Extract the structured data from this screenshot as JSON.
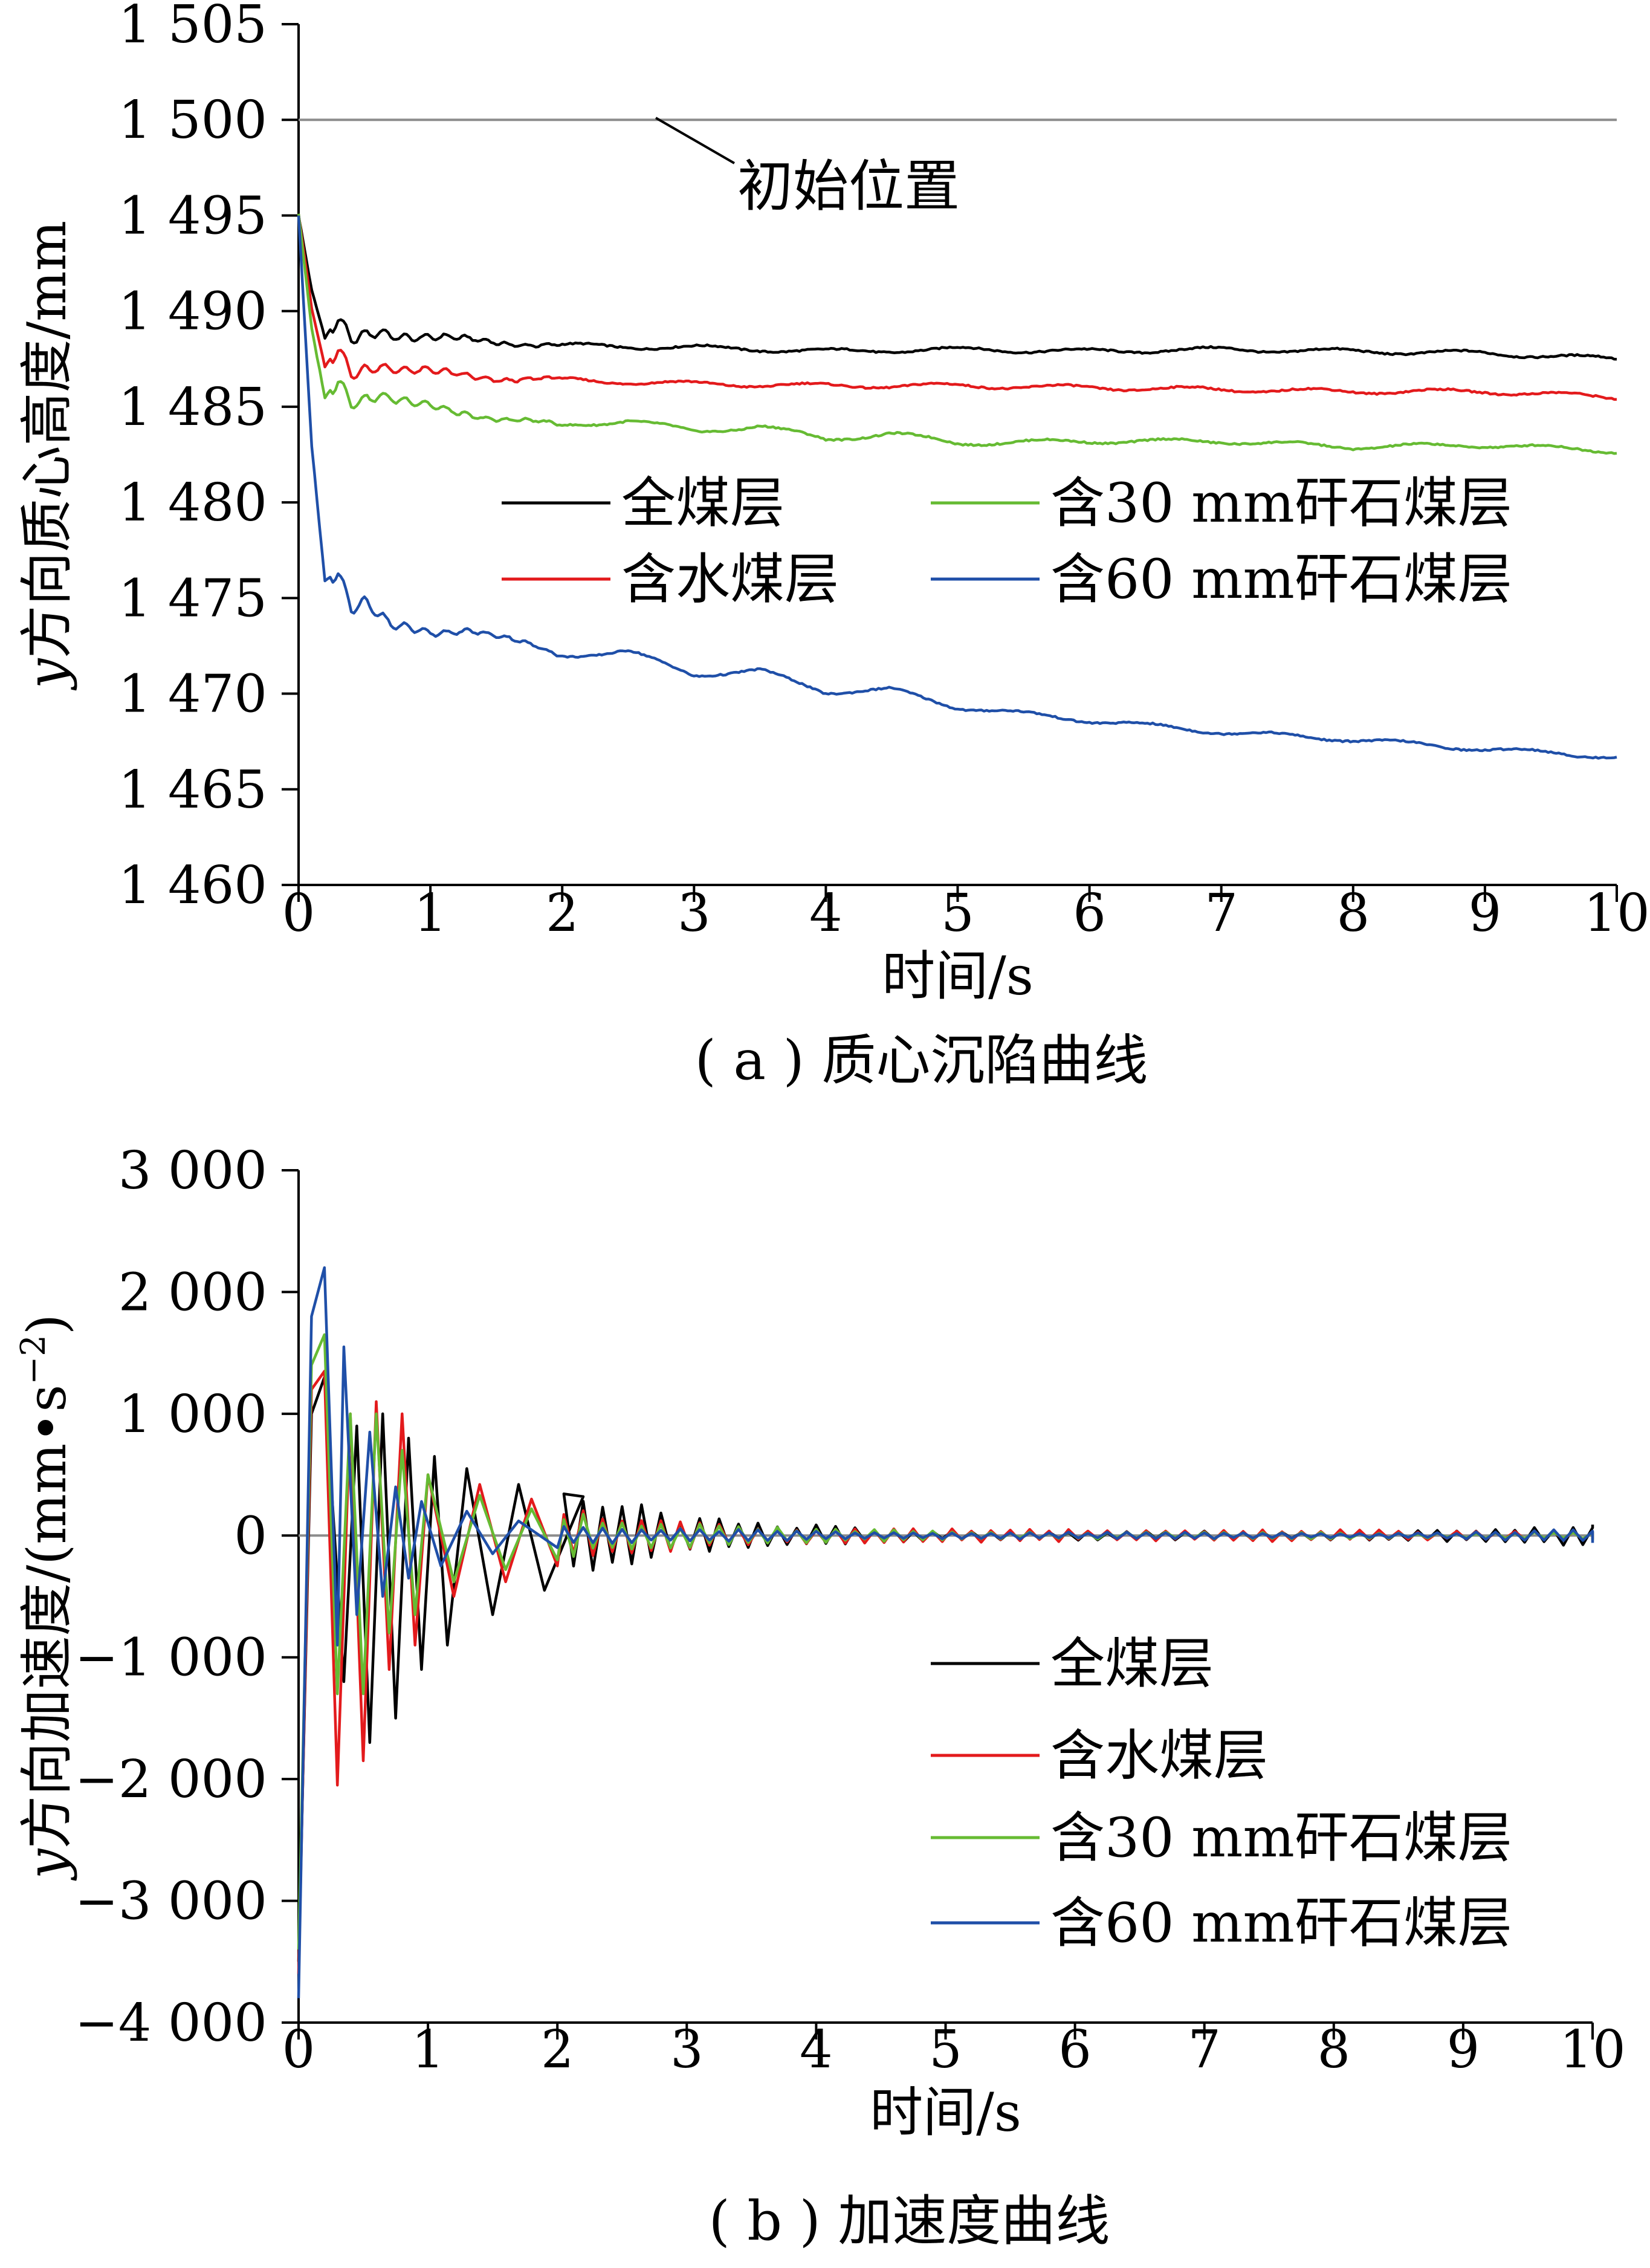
{
  "chart_data": [
    {
      "type": "line",
      "panel_caption": "( a ) 质心沉陷曲线",
      "xlabel": "时间/s",
      "ylabel_var": "y",
      "ylabel_rest": "方向质心高度/mm",
      "xlim": [
        0,
        10
      ],
      "ylim": [
        1460,
        1505
      ],
      "x_ticks": [
        0,
        1,
        2,
        3,
        4,
        5,
        6,
        7,
        8,
        9,
        10
      ],
      "x_tick_labels": [
        "0",
        "1",
        "2",
        "3",
        "4",
        "5",
        "6",
        "7",
        "8",
        "9",
        "10"
      ],
      "y_ticks": [
        1460,
        1465,
        1470,
        1475,
        1480,
        1485,
        1490,
        1495,
        1500,
        1505
      ],
      "y_tick_labels": [
        "1 460",
        "1 465",
        "1 470",
        "1 475",
        "1 480",
        "1 485",
        "1 490",
        "1 495",
        "1 500",
        "1 505"
      ],
      "legend_placement": "center-right",
      "reference_line": {
        "y": 1500,
        "label": "初始位置",
        "color": "#8c8c8c"
      },
      "series": [
        {
          "name": "全煤层",
          "color": "#000000",
          "x": [
            0,
            0.1,
            0.2,
            0.3,
            0.4,
            0.6,
            0.8,
            1,
            1.5,
            2,
            3,
            4,
            5,
            6,
            7,
            8,
            9,
            10
          ],
          "y": [
            1495,
            1491,
            1488.5,
            1489.5,
            1488.5,
            1489,
            1488.7,
            1488.6,
            1488.4,
            1488.2,
            1488.1,
            1487.9,
            1488,
            1487.9,
            1488,
            1487.9,
            1487.8,
            1487.5
          ]
        },
        {
          "name": "含水煤层",
          "color": "#e31a1c",
          "x": [
            0,
            0.1,
            0.2,
            0.3,
            0.4,
            0.6,
            0.8,
            1,
            1.5,
            2,
            3,
            4,
            5,
            6,
            7,
            8,
            9,
            10
          ],
          "y": [
            1495,
            1490,
            1487,
            1488,
            1486.8,
            1487.2,
            1486.9,
            1486.8,
            1486.5,
            1486.4,
            1486.2,
            1486.1,
            1486.1,
            1486,
            1485.9,
            1485.8,
            1485.8,
            1485.5
          ]
        },
        {
          "name": "含30 mm矸石煤层",
          "color": "#66bb33",
          "x": [
            0,
            0.1,
            0.2,
            0.3,
            0.4,
            0.6,
            0.8,
            1,
            1.5,
            2,
            2.5,
            3,
            3.5,
            4,
            4.5,
            5,
            6,
            7,
            8,
            9,
            10
          ],
          "y": [
            1495,
            1489,
            1485.5,
            1486.5,
            1485.3,
            1485.6,
            1485.2,
            1485,
            1484.4,
            1484,
            1484.3,
            1483.7,
            1484,
            1483.3,
            1483.6,
            1483.1,
            1483.2,
            1483.2,
            1482.9,
            1483,
            1482.7
          ]
        },
        {
          "name": "含60 mm矸石煤层",
          "color": "#1f4fa8",
          "x": [
            0,
            0.1,
            0.2,
            0.3,
            0.4,
            0.5,
            0.7,
            0.9,
            1,
            1.3,
            1.5,
            2,
            2.5,
            3,
            3.5,
            4,
            4.5,
            5,
            6,
            7,
            8,
            9,
            10
          ],
          "y": [
            1495,
            1483,
            1476,
            1476.5,
            1474.5,
            1474.8,
            1473.5,
            1473.3,
            1473.2,
            1473.4,
            1473,
            1472,
            1472.2,
            1471,
            1471.2,
            1470.1,
            1470.2,
            1469.3,
            1468.6,
            1468,
            1467.6,
            1467.1,
            1466.7
          ]
        }
      ]
    },
    {
      "type": "line",
      "panel_caption": "( b ) 加速度曲线",
      "xlabel": "时间/s",
      "ylabel_var": "y",
      "ylabel_rest": "方向加速度/(mm•s",
      "ylabel_sup": "−2",
      "ylabel_end": ")",
      "xlim": [
        0,
        10
      ],
      "ylim": [
        -4000,
        3000
      ],
      "x_ticks": [
        0,
        1,
        2,
        3,
        4,
        5,
        6,
        7,
        8,
        9,
        10
      ],
      "x_tick_labels": [
        "0",
        "1",
        "2",
        "3",
        "4",
        "5",
        "6",
        "7",
        "8",
        "9",
        "10"
      ],
      "y_ticks": [
        -4000,
        -3000,
        -2000,
        -1000,
        0,
        1000,
        2000,
        3000
      ],
      "y_tick_labels": [
        "−4 000",
        "−3 000",
        "−2 000",
        "−1 000",
        "0",
        "1 000",
        "2 000",
        "3 000"
      ],
      "legend_placement": "bottom-right",
      "zero_line_color": "#8c8c8c",
      "series": [
        {
          "name": "全煤层",
          "color": "#000000",
          "x": [
            0,
            0.1,
            0.2,
            0.35,
            0.45,
            0.55,
            0.65,
            0.75,
            0.85,
            0.95,
            1.05,
            1.15,
            1.3,
            1.5,
            1.7,
            1.9,
            2.2,
            2.5,
            3,
            3.5,
            4,
            5,
            6,
            7,
            8,
            9,
            9.5,
            10
          ],
          "y": [
            -3500,
            1000,
            1300,
            -1200,
            900,
            -1700,
            1000,
            -1500,
            800,
            -1100,
            650,
            -900,
            550,
            -650,
            420,
            -450,
            320,
            -300,
            160,
            -120,
            90,
            40,
            -40,
            40,
            -40,
            60,
            -70,
            90
          ]
        },
        {
          "name": "含水煤层",
          "color": "#e31a1c",
          "x": [
            0,
            0.1,
            0.2,
            0.3,
            0.4,
            0.5,
            0.6,
            0.7,
            0.8,
            0.9,
            1,
            1.2,
            1.4,
            1.6,
            1.8,
            2,
            2.5,
            3,
            4,
            5,
            6,
            7,
            8,
            9,
            10
          ],
          "y": [
            -3600,
            1200,
            1350,
            -2050,
            1000,
            -1850,
            1100,
            -1100,
            1000,
            -900,
            500,
            -500,
            420,
            -380,
            300,
            -250,
            180,
            -120,
            70,
            -60,
            50,
            -50,
            50,
            -40,
            -30
          ]
        },
        {
          "name": "含30 mm矸石煤层",
          "color": "#66bb33",
          "x": [
            0,
            0.1,
            0.2,
            0.3,
            0.4,
            0.5,
            0.6,
            0.7,
            0.8,
            0.9,
            1,
            1.2,
            1.4,
            1.6,
            1.8,
            2,
            2.5,
            3,
            4,
            5,
            6,
            7,
            8,
            9,
            10
          ],
          "y": [
            -3400,
            1400,
            1650,
            -1300,
            1000,
            -1300,
            1000,
            -800,
            700,
            -650,
            500,
            -380,
            330,
            -280,
            220,
            -200,
            140,
            -100,
            60,
            -40,
            30,
            -30,
            30,
            -20,
            -40
          ]
        },
        {
          "name": "含60 mm矸石煤层",
          "color": "#1f4fa8",
          "x": [
            0,
            0.1,
            0.2,
            0.3,
            0.35,
            0.45,
            0.55,
            0.65,
            0.75,
            0.85,
            0.95,
            1.1,
            1.3,
            1.5,
            1.7,
            2,
            2.5,
            3,
            4,
            5,
            6,
            7,
            8,
            9,
            10
          ],
          "y": [
            -3800,
            1800,
            2200,
            -900,
            1550,
            -650,
            850,
            -500,
            400,
            -350,
            280,
            -250,
            200,
            -150,
            120,
            -100,
            70,
            -60,
            40,
            -30,
            30,
            -30,
            20,
            -30,
            -60
          ]
        }
      ]
    }
  ]
}
